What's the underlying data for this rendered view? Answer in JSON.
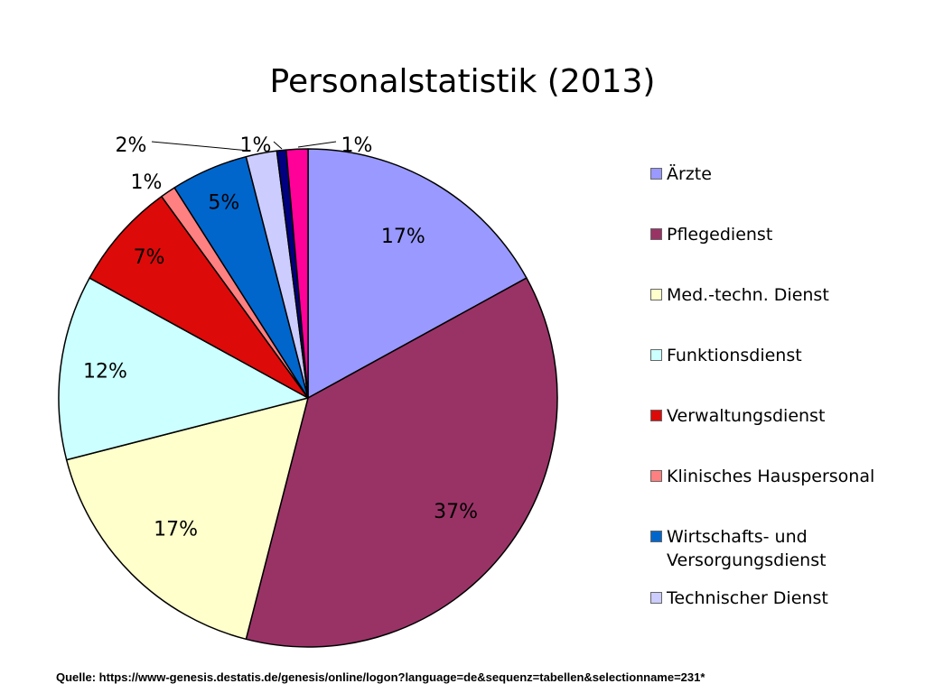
{
  "chart_data": {
    "type": "pie",
    "title": "Personalstatistik (2013)",
    "slices": [
      {
        "name": "Ärzte",
        "value": 17,
        "label": "17%",
        "color": "#9999FF"
      },
      {
        "name": "Pflegedienst",
        "value": 37,
        "label": "37%",
        "color": "#993366"
      },
      {
        "name": "Med.-techn. Dienst",
        "value": 17,
        "label": "17%",
        "color": "#FFFFCC"
      },
      {
        "name": "Funktionsdienst",
        "value": 12,
        "label": "12%",
        "color": "#CCFFFF"
      },
      {
        "name": "Verwaltungsdienst",
        "value": 7,
        "label": "7%",
        "color": "#DD0A0A"
      },
      {
        "name": "Klinisches Hauspersonal",
        "value": 1,
        "label": "1%",
        "color": "#FF8080"
      },
      {
        "name": "Wirtschafts- und\nVersorgungsdienst",
        "value": 5,
        "label": "5%",
        "color": "#0066CC"
      },
      {
        "name": "Technischer Dienst",
        "value": 2,
        "label": "2%",
        "color": "#CCCCFF"
      },
      {
        "name": "",
        "value": 0.6,
        "label": "1%",
        "color": "#000080"
      },
      {
        "name": "",
        "value": 1.4,
        "label": "1%",
        "color": "#FF0099"
      }
    ],
    "legend_position": "right"
  },
  "source": "Quelle: https://www-genesis.destatis.de/genesis/online/logon?language=de&sequenz=tabellen&selectionname=231*"
}
